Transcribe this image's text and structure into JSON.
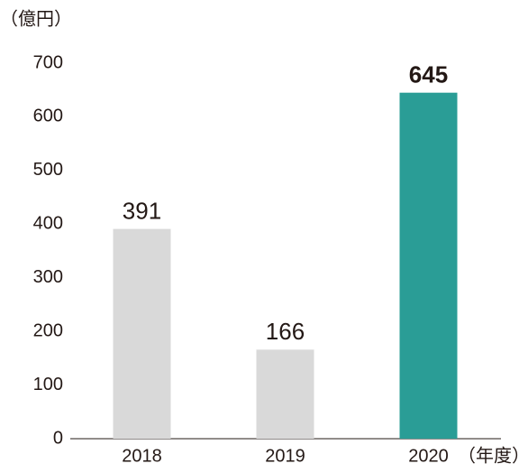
{
  "chart_data": {
    "type": "bar",
    "y_label": "（億円）",
    "x_label": "（年度）",
    "categories": [
      "2018",
      "2019",
      "2020"
    ],
    "values": [
      391,
      166,
      645
    ],
    "colors": [
      "#d9d9d9",
      "#d9d9d9",
      "#2a9d96"
    ],
    "emphasis": [
      false,
      false,
      true
    ],
    "ylim": [
      0,
      700
    ],
    "yticks": [
      0,
      100,
      200,
      300,
      400,
      500,
      600,
      700
    ],
    "grid": false
  }
}
